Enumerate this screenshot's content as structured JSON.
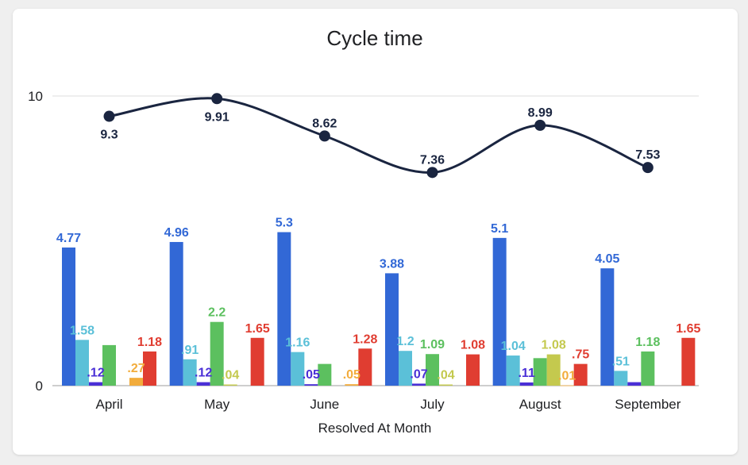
{
  "chart_data": {
    "type": "bar",
    "title": "Cycle time",
    "xlabel": "Resolved At Month",
    "ylabel": "",
    "ylim": [
      0,
      10
    ],
    "yticks": [
      "0",
      "10"
    ],
    "grid": true,
    "categories": [
      "April",
      "May",
      "June",
      "July",
      "August",
      "September"
    ],
    "series": [
      {
        "color": "#3268d6",
        "values": [
          4.77,
          4.96,
          5.3,
          3.88,
          5.1,
          4.05
        ],
        "labels": [
          "4.77",
          "4.96",
          "5.3",
          "3.88",
          "5.1",
          "4.05"
        ]
      },
      {
        "color": "#5bc0d8",
        "values": [
          1.58,
          0.91,
          1.16,
          1.2,
          1.04,
          0.51
        ],
        "labels": [
          "1.58",
          ".91",
          "1.16",
          "1.2",
          "1.04",
          ".51"
        ]
      },
      {
        "color": "#4a2fd6",
        "values": [
          0.12,
          0.12,
          0.05,
          0.07,
          0.11,
          0.12
        ],
        "labels": [
          ".12",
          ".12",
          ".05",
          ".07",
          ".11",
          ""
        ]
      },
      {
        "color": "#5cc05f",
        "values": [
          1.4,
          2.2,
          0.75,
          1.09,
          0.95,
          1.18
        ],
        "labels": [
          "",
          "2.2",
          "",
          "1.09",
          "",
          "1.18"
        ]
      },
      {
        "color": "#c4c94e",
        "values": [
          null,
          0.04,
          null,
          0.04,
          1.08,
          null
        ],
        "labels": [
          "",
          ".04",
          "",
          ".04",
          "1.08",
          ""
        ]
      },
      {
        "color": "#f2ac3c",
        "values": [
          0.27,
          null,
          0.05,
          null,
          0.01,
          null
        ],
        "labels": [
          ".27",
          "",
          ".05",
          "",
          ".01",
          ""
        ]
      },
      {
        "color": "#e03d31",
        "values": [
          1.18,
          1.65,
          1.28,
          1.08,
          0.75,
          1.65
        ],
        "labels": [
          "1.18",
          "1.65",
          "1.28",
          "1.08",
          ".75",
          "1.65"
        ]
      }
    ],
    "line_series": {
      "type": "line",
      "color": "#1a2540",
      "values": [
        9.3,
        9.91,
        8.62,
        7.36,
        8.99,
        7.53
      ],
      "labels": [
        "9.3",
        "9.91",
        "8.62",
        "7.36",
        "8.99",
        "7.53"
      ]
    }
  }
}
